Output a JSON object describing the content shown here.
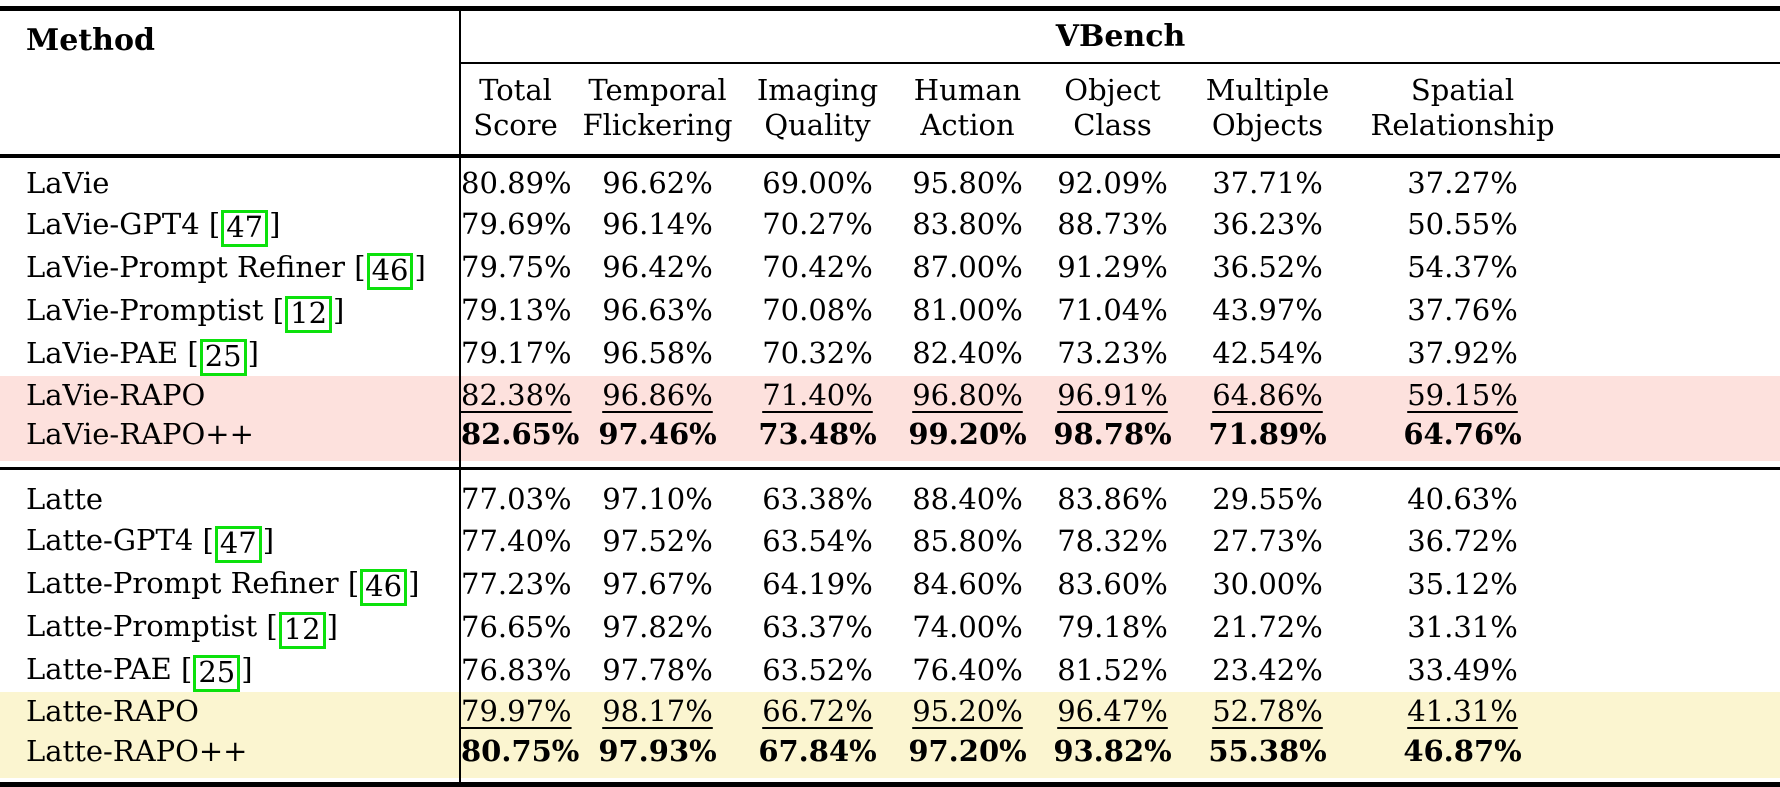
{
  "header": {
    "method_label": "Method",
    "group_label": "VBench",
    "columns": [
      {
        "l1": "Total",
        "l2": "Score"
      },
      {
        "l1": "Temporal",
        "l2": "Flickering"
      },
      {
        "l1": "Imaging",
        "l2": "Quality"
      },
      {
        "l1": "Human",
        "l2": "Action"
      },
      {
        "l1": "Object",
        "l2": "Class"
      },
      {
        "l1": "Multiple",
        "l2": "Objects"
      },
      {
        "l1": "Spatial",
        "l2": "Relationship"
      }
    ]
  },
  "colors": {
    "lavie_highlight": "#fde1dd",
    "latte_highlight": "#fbf5d0",
    "citation_box_green": "#0ce10c",
    "rule_black": "#000000"
  },
  "groups": [
    {
      "name": "LaVie",
      "highlight": "#fde1dd",
      "rows": [
        {
          "method": "LaVie",
          "citation": null,
          "style": "normal",
          "values": [
            "80.89%",
            "96.62%",
            "69.00%",
            "95.80%",
            "92.09%",
            "37.71%",
            "37.27%"
          ]
        },
        {
          "method": "LaVie-GPT4",
          "citation": "47",
          "style": "normal",
          "values": [
            "79.69%",
            "96.14%",
            "70.27%",
            "83.80%",
            "88.73%",
            "36.23%",
            "50.55%"
          ]
        },
        {
          "method": "LaVie-Prompt Refiner",
          "citation": "46",
          "style": "normal",
          "values": [
            "79.75%",
            "96.42%",
            "70.42%",
            "87.00%",
            "91.29%",
            "36.52%",
            "54.37%"
          ]
        },
        {
          "method": "LaVie-Promptist",
          "citation": "12",
          "style": "normal",
          "values": [
            "79.13%",
            "96.63%",
            "70.08%",
            "81.00%",
            "71.04%",
            "43.97%",
            "37.76%"
          ]
        },
        {
          "method": "LaVie-PAE",
          "citation": "25",
          "style": "normal",
          "values": [
            "79.17%",
            "96.58%",
            "70.32%",
            "82.40%",
            "73.23%",
            "42.54%",
            "37.92%"
          ]
        },
        {
          "method": "LaVie-RAPO",
          "citation": null,
          "style": "underline",
          "values": [
            "82.38%",
            "96.86%",
            "71.40%",
            "96.80%",
            "96.91%",
            "64.86%",
            "59.15%"
          ]
        },
        {
          "method": "LaVie-RAPO++",
          "citation": null,
          "style": "bold",
          "values": [
            "82.65%",
            "97.46%",
            "73.48%",
            "99.20%",
            "98.78%",
            "71.89%",
            "64.76%"
          ]
        }
      ]
    },
    {
      "name": "Latte",
      "highlight": "#fbf5d0",
      "rows": [
        {
          "method": "Latte",
          "citation": null,
          "style": "normal",
          "values": [
            "77.03%",
            "97.10%",
            "63.38%",
            "88.40%",
            "83.86%",
            "29.55%",
            "40.63%"
          ]
        },
        {
          "method": "Latte-GPT4",
          "citation": "47",
          "style": "normal",
          "values": [
            "77.40%",
            "97.52%",
            "63.54%",
            "85.80%",
            "78.32%",
            "27.73%",
            "36.72%"
          ]
        },
        {
          "method": "Latte-Prompt Refiner",
          "citation": "46",
          "style": "normal",
          "values": [
            "77.23%",
            "97.67%",
            "64.19%",
            "84.60%",
            "83.60%",
            "30.00%",
            "35.12%"
          ]
        },
        {
          "method": "Latte-Promptist",
          "citation": "12",
          "style": "normal",
          "values": [
            "76.65%",
            "97.82%",
            "63.37%",
            "74.00%",
            "79.18%",
            "21.72%",
            "31.31%"
          ]
        },
        {
          "method": "Latte-PAE",
          "citation": "25",
          "style": "normal",
          "values": [
            "76.83%",
            "97.78%",
            "63.52%",
            "76.40%",
            "81.52%",
            "23.42%",
            "33.49%"
          ]
        },
        {
          "method": "Latte-RAPO",
          "citation": null,
          "style": "underline",
          "values": [
            "79.97%",
            "98.17%",
            "66.72%",
            "95.20%",
            "96.47%",
            "52.78%",
            "41.31%"
          ]
        },
        {
          "method": "Latte-RAPO++",
          "citation": null,
          "style": "bold",
          "values": [
            "80.75%",
            "97.93%",
            "67.84%",
            "97.20%",
            "93.82%",
            "55.38%",
            "46.87%"
          ]
        }
      ]
    }
  ]
}
